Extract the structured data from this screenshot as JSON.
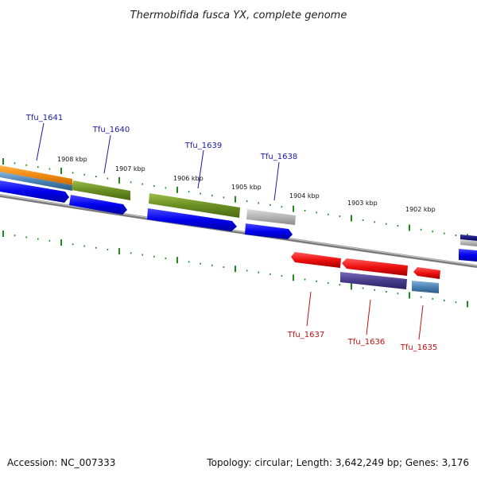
{
  "title": "Thermobifida fusca YX, complete genome",
  "footer": {
    "accession": "Accession: NC_007333",
    "summary": "Topology: circular; Length: 3,642,249 bp; Genes: 3,176"
  },
  "colors": {
    "backbone": "#8a8a8a",
    "tick": "#1e8a1e",
    "forward_label": "#1a1aa8",
    "reverse_label": "#c01010"
  },
  "scale_labels": [
    "1908 kbp",
    "1907 kbp",
    "1906 kbp",
    "1905 kbp",
    "1904 kbp",
    "1903 kbp",
    "1902 kbp"
  ],
  "genes": [
    {
      "name": "Tfu_1641",
      "strand": "forward",
      "color": "#f0901e"
    },
    {
      "name": "Tfu_1640",
      "strand": "forward",
      "color": "#6b8e23"
    },
    {
      "name": "Tfu_1639",
      "strand": "forward",
      "color": "#6b8e23"
    },
    {
      "name": "Tfu_1638",
      "strand": "forward",
      "color": "#b4b4b4"
    },
    {
      "name": "Tfu_1637",
      "strand": "reverse",
      "color": "#ee1010"
    },
    {
      "name": "Tfu_1636",
      "strand": "reverse",
      "color": "#ee1010"
    },
    {
      "name": "Tfu_1635",
      "strand": "reverse",
      "color": "#ee1010"
    }
  ]
}
